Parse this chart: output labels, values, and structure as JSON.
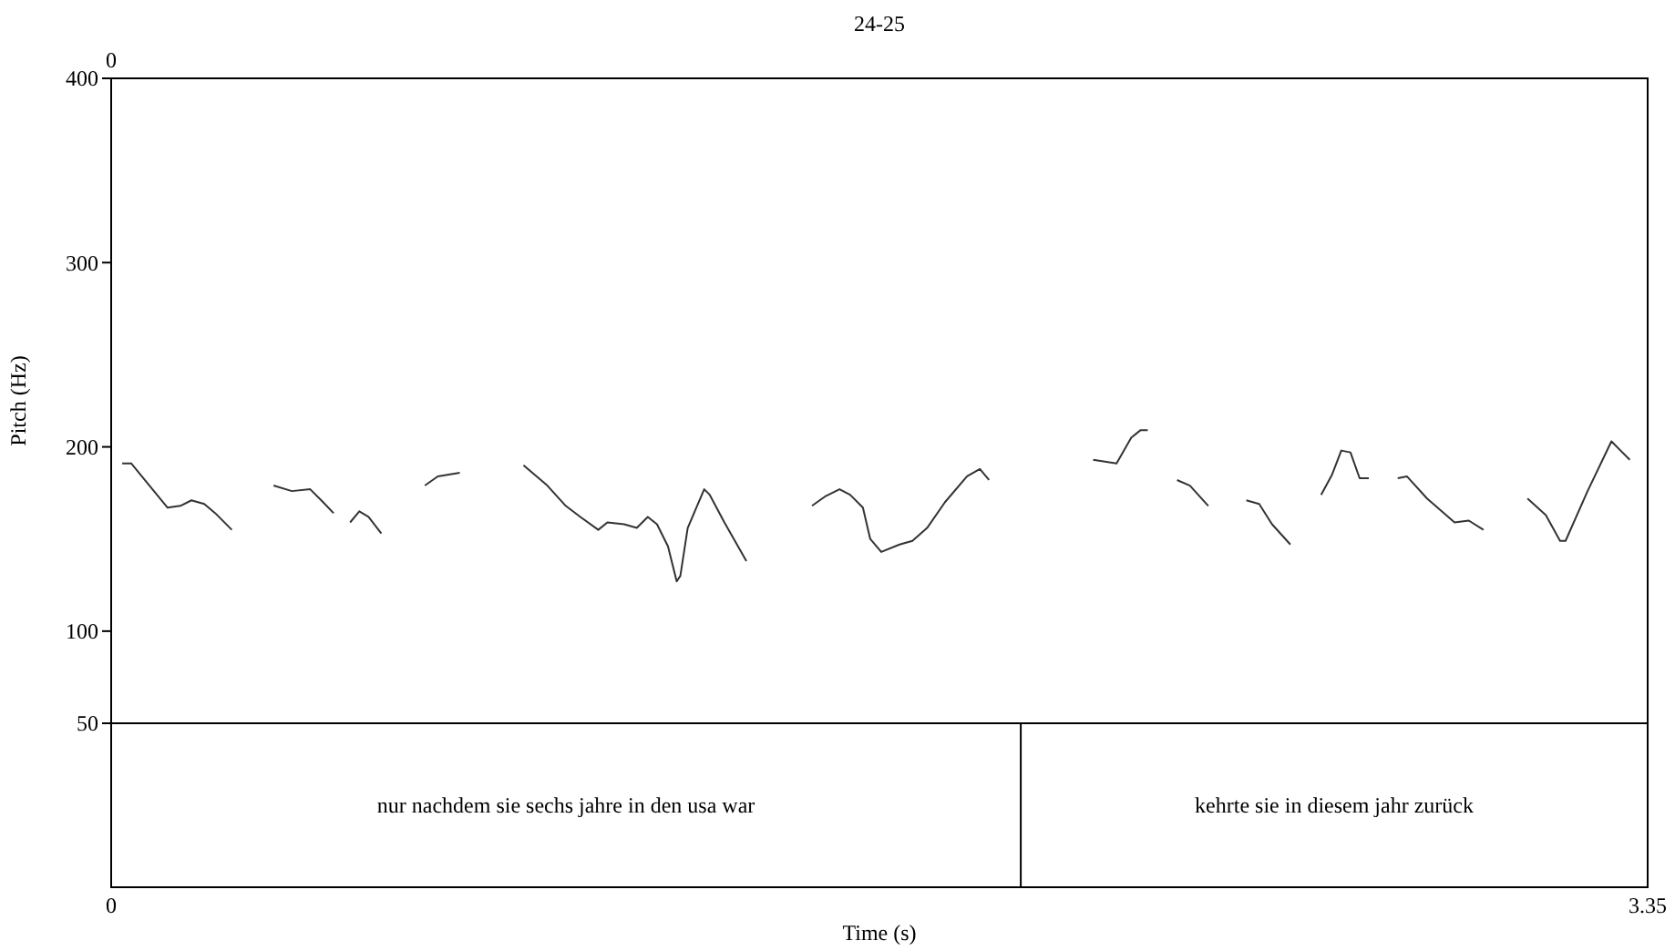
{
  "chart_data": [
    {
      "type": "line",
      "title": "24-25",
      "ylabel": "Pitch (Hz)",
      "xlabel": "Time (s)",
      "ylim": [
        50,
        400
      ],
      "yticks": [
        50,
        100,
        200,
        300,
        400
      ],
      "xlim": [
        0,
        3.35
      ],
      "xticks": [
        0,
        3.35
      ],
      "annotations": [
        "0"
      ],
      "grid": false,
      "series": [
        {
          "color": "#333333",
          "x": [
            0.024,
            0.044,
            0.123,
            0.151,
            0.175,
            0.203,
            0.227,
            0.263,
            0.3,
            0.354,
            0.394,
            0.434,
            0.462,
            0.485,
            0.5,
            0.521,
            0.541,
            0.561,
            0.589,
            0.63,
            0.684,
            0.712,
            0.76,
            0.83,
            0.899,
            0.951,
            0.991,
            1.023,
            1.062,
            1.082,
            1.118,
            1.146,
            1.17,
            1.19,
            1.214,
            1.233,
            1.241,
            1.257,
            1.293,
            1.305,
            1.337,
            1.385,
            1.45,
            1.528,
            1.556,
            1.588,
            1.611,
            1.639,
            1.655,
            1.679,
            1.719,
            1.747,
            1.779,
            1.818,
            1.866,
            1.894,
            1.914,
            2.03,
            2.141,
            2.192,
            2.224,
            2.244,
            2.26,
            2.29,
            2.324,
            2.352,
            2.392,
            2.43,
            2.475,
            2.503,
            2.531,
            2.571,
            2.6,
            2.638,
            2.662,
            2.682,
            2.702,
            2.722,
            2.742,
            2.77,
            2.805,
            2.825,
            2.869,
            2.929,
            2.96,
            2.992,
            3.04,
            3.088,
            3.128,
            3.159,
            3.171,
            3.219,
            3.271,
            3.311
          ],
          "values": [
            191,
            191,
            167,
            168,
            171,
            169,
            164,
            155,
            null,
            179,
            176,
            177,
            170,
            164,
            null,
            159,
            165,
            162,
            153,
            null,
            179,
            184,
            186,
            null,
            190,
            179,
            168,
            162,
            155,
            159,
            158,
            156,
            162,
            158,
            146,
            127,
            130,
            156,
            177,
            174,
            159,
            138,
            null,
            168,
            173,
            177,
            174,
            167,
            150,
            143,
            147,
            149,
            156,
            170,
            184,
            188,
            182,
            null,
            193,
            191,
            205,
            209,
            209,
            null,
            182,
            179,
            168,
            null,
            171,
            169,
            158,
            147,
            null,
            174,
            185,
            198,
            197,
            183,
            183,
            null,
            183,
            184,
            172,
            159,
            160,
            155,
            null,
            172,
            163,
            149,
            149,
            176,
            203,
            193
          ]
        }
      ]
    },
    {
      "type": "other",
      "annotations": [
        "nur nachdem sie sechs jahre in den usa war",
        "kehrte sie in diesem jahr zurück"
      ]
    }
  ]
}
